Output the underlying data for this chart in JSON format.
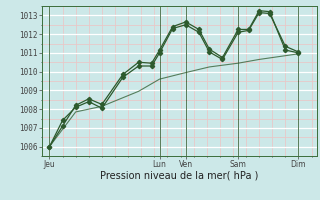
{
  "title": "",
  "xlabel": "Pression niveau de la mer( hPa )",
  "bg_color": "#cce8e8",
  "line_color": "#2d5a2d",
  "grid_major_color": "#ffffff",
  "grid_minor_color": "#e8c8c8",
  "ylim": [
    1005.5,
    1013.5
  ],
  "yticks": [
    1006,
    1007,
    1008,
    1009,
    1010,
    1011,
    1012,
    1013
  ],
  "day_labels": [
    "Jeu",
    "Lun",
    "Ven",
    "Sam",
    "Dim"
  ],
  "day_positions": [
    0,
    4.2,
    5.2,
    7.2,
    9.5
  ],
  "line1_x": [
    0,
    0.5,
    1.0,
    1.5,
    2.0,
    2.8,
    3.4,
    3.9,
    4.2,
    4.7,
    5.2,
    5.7,
    6.1,
    6.6,
    7.2,
    7.6,
    8.0,
    8.4,
    9.0,
    9.5
  ],
  "line1_y": [
    1006.0,
    1007.4,
    1008.1,
    1008.4,
    1008.05,
    1009.7,
    1010.3,
    1010.3,
    1011.0,
    1012.3,
    1012.5,
    1012.1,
    1011.05,
    1010.65,
    1012.1,
    1012.2,
    1013.15,
    1013.1,
    1011.35,
    1011.05
  ],
  "line2_x": [
    0,
    0.5,
    1.0,
    1.5,
    2.0,
    2.8,
    3.4,
    3.9,
    4.2,
    4.7,
    5.2,
    5.7,
    6.1,
    6.6,
    7.2,
    7.6,
    8.0,
    8.4,
    9.0,
    9.5
  ],
  "line2_y": [
    1006.0,
    1007.1,
    1008.2,
    1008.55,
    1008.25,
    1009.85,
    1010.5,
    1010.45,
    1011.15,
    1012.4,
    1012.65,
    1012.25,
    1011.2,
    1010.75,
    1012.25,
    1012.25,
    1013.25,
    1013.2,
    1011.15,
    1011.0
  ],
  "line3_x": [
    0,
    1.0,
    2.0,
    3.4,
    4.2,
    5.2,
    6.1,
    7.2,
    8.0,
    9.0,
    9.5
  ],
  "line3_y": [
    1006.0,
    1007.85,
    1008.15,
    1008.95,
    1009.6,
    1009.95,
    1010.25,
    1010.45,
    1010.65,
    1010.85,
    1010.95
  ],
  "vline_positions": [
    0,
    4.2,
    5.2,
    7.2,
    9.5
  ],
  "xlim": [
    -0.3,
    10.2
  ],
  "figsize": [
    3.2,
    2.0
  ],
  "dpi": 100,
  "xlabel_fontsize": 7.0,
  "tick_fontsize": 5.5
}
